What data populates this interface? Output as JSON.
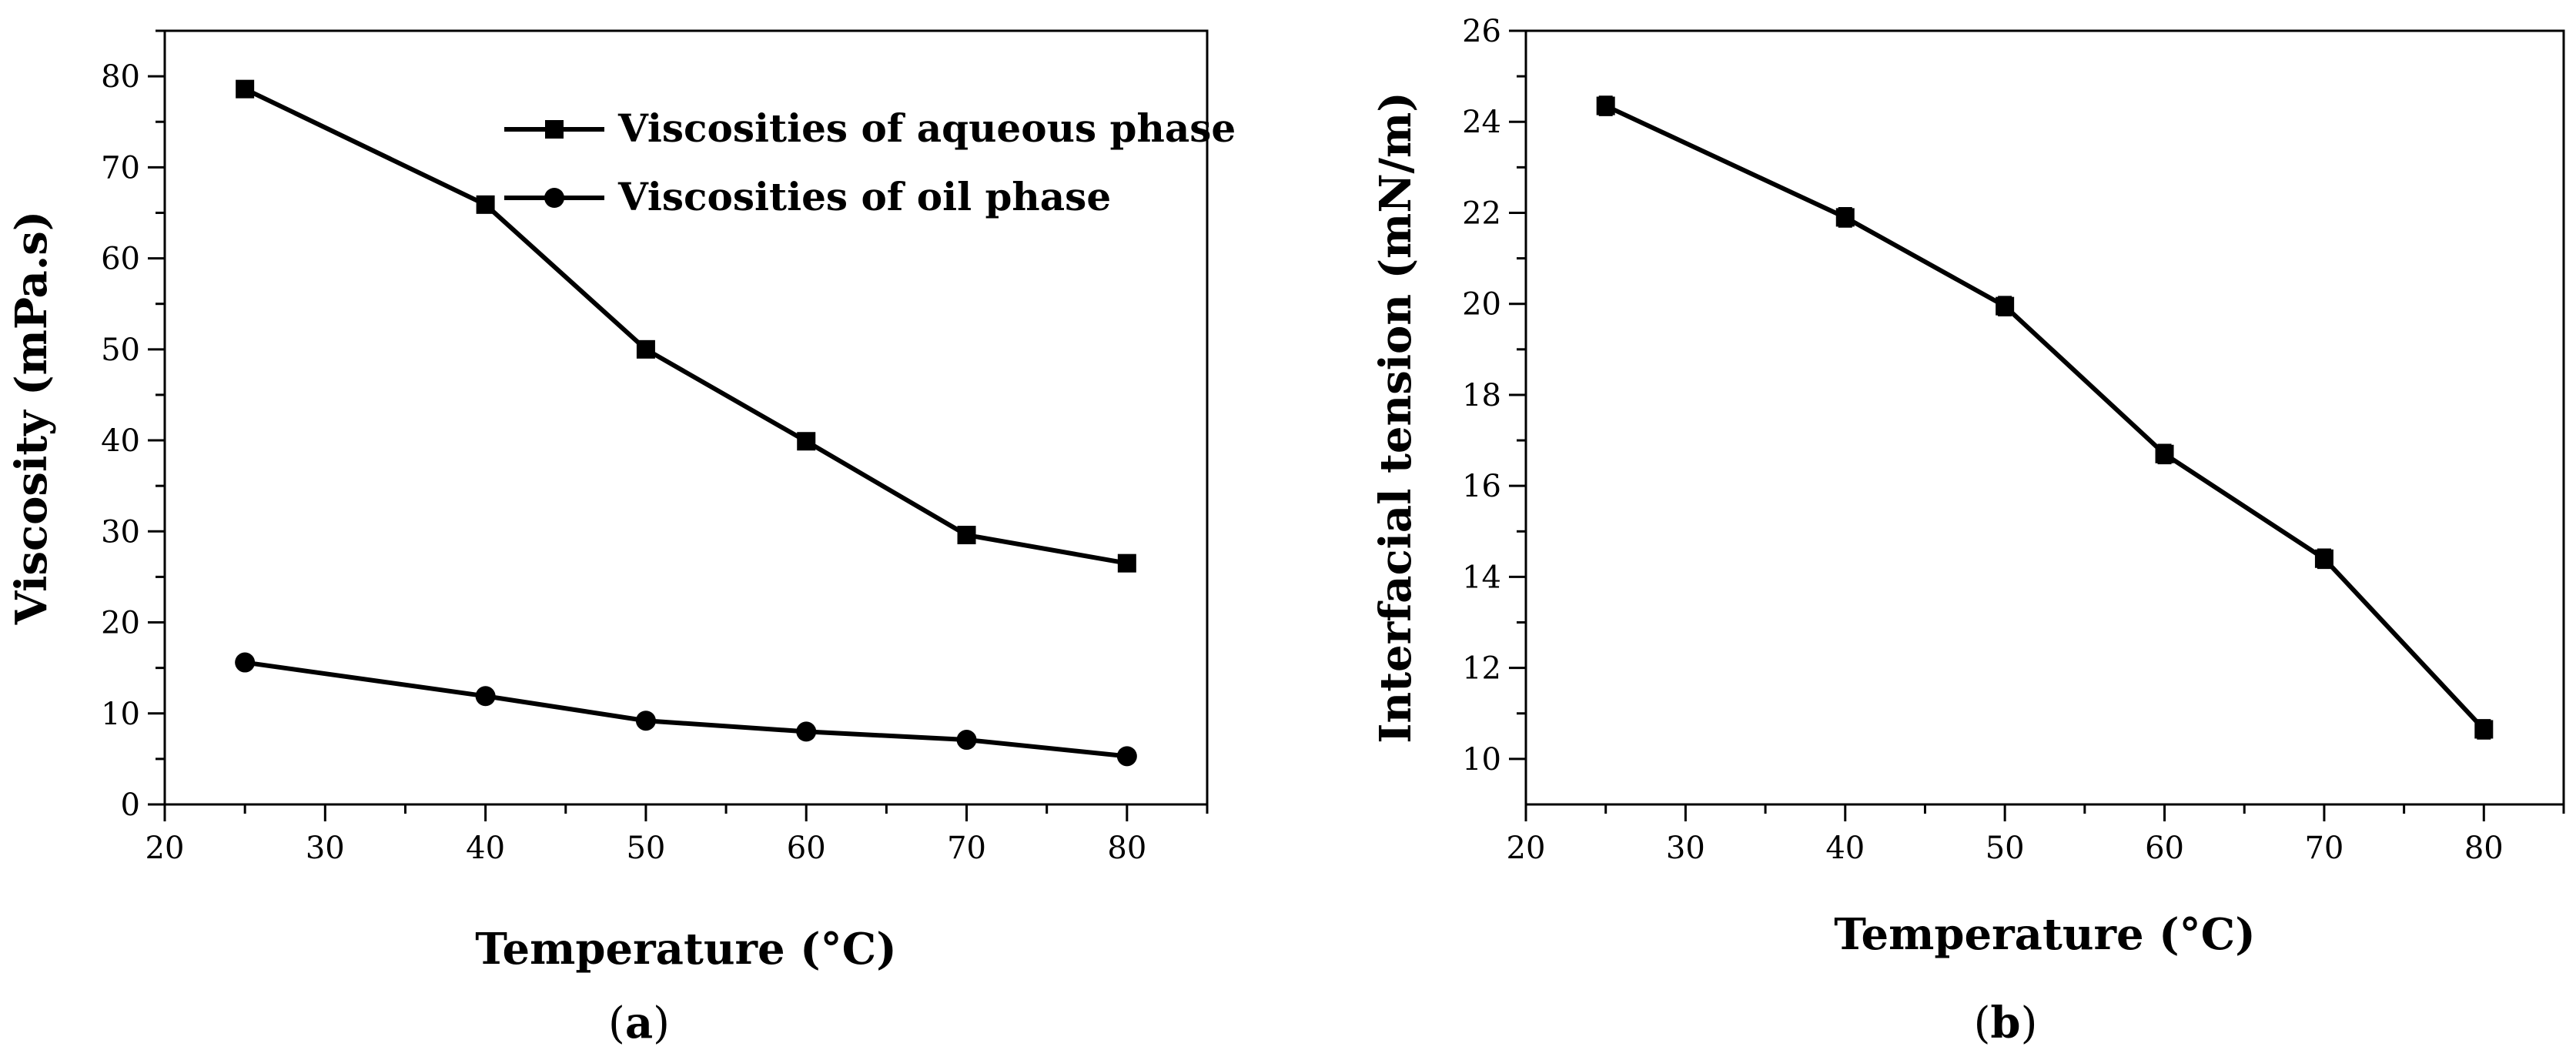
{
  "chart_data": [
    {
      "panel": "(a)",
      "type": "line",
      "xlabel": "Temperature (°C)",
      "ylabel": "Viscosity (mPa.s)",
      "xlim": [
        20,
        85
      ],
      "ylim": [
        0,
        85
      ],
      "xticks": [
        20,
        30,
        40,
        50,
        60,
        70,
        80
      ],
      "yticks": [
        0,
        10,
        20,
        30,
        40,
        50,
        60,
        70,
        80
      ],
      "legend": "top-right",
      "grid": false,
      "series": [
        {
          "name": "Viscosities of aqueous phase",
          "marker": "square",
          "x": [
            25,
            40,
            50,
            60,
            70,
            80
          ],
          "y": [
            78.6,
            65.9,
            50.0,
            39.9,
            29.6,
            26.5
          ]
        },
        {
          "name": "Viscosities of oil phase",
          "marker": "circle",
          "x": [
            25,
            40,
            50,
            60,
            70,
            80
          ],
          "y": [
            15.6,
            11.9,
            9.2,
            8.0,
            7.1,
            5.3
          ]
        }
      ]
    },
    {
      "panel": "(b)",
      "type": "line",
      "xlabel": "Temperature (°C)",
      "ylabel": "Interfacial tension (mN/m)",
      "xlim": [
        20,
        85
      ],
      "ylim": [
        9,
        26
      ],
      "xticks": [
        20,
        30,
        40,
        50,
        60,
        70,
        80
      ],
      "yticks": [
        10,
        12,
        14,
        16,
        18,
        20,
        22,
        24,
        26
      ],
      "grid": false,
      "series": [
        {
          "marker": "square",
          "error_bars": true,
          "x": [
            25,
            40,
            50,
            60,
            70,
            80
          ],
          "y": [
            24.35,
            21.9,
            19.95,
            16.7,
            14.4,
            10.65
          ],
          "yerr": [
            0.2,
            0.2,
            0.2,
            0.2,
            0.2,
            0.2
          ]
        }
      ]
    }
  ]
}
